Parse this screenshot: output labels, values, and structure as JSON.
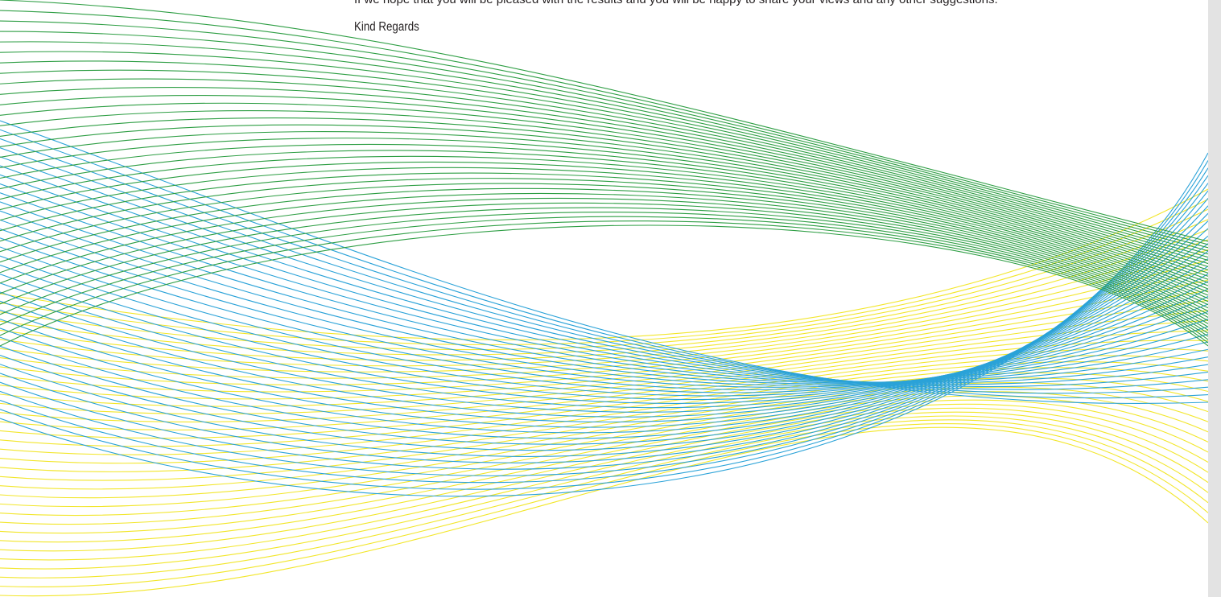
{
  "letter": {
    "cut_off_line": "If we hope that you will be pleased with the results and you will be happy to share your views and any other suggestions.",
    "sign_off": "Kind Regards"
  },
  "decoration": {
    "green": "#2e9e44",
    "blue": "#2aa2d8",
    "yellow": "#f2e62a"
  }
}
